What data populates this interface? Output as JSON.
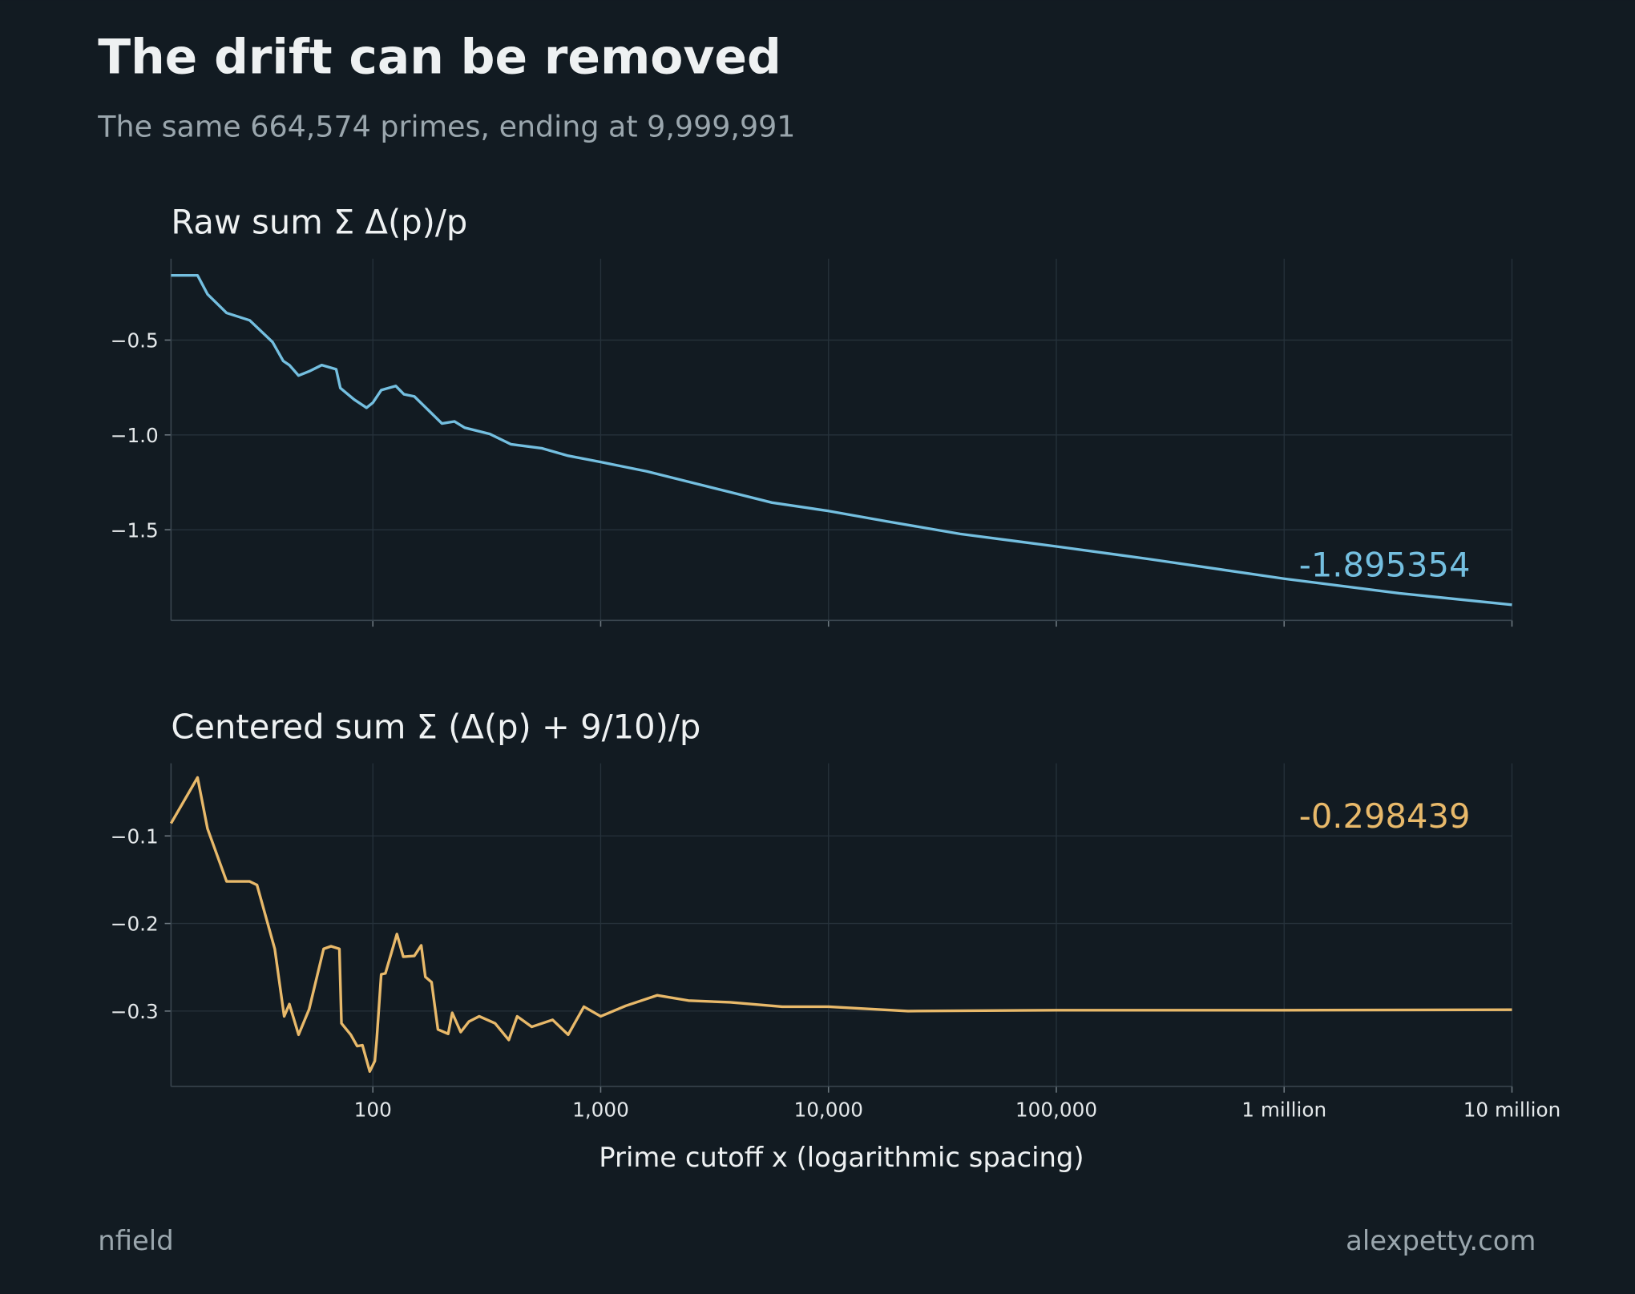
{
  "title": "The drift can be removed",
  "subtitle": "The same 664,574 primes, ending at 9,999,991",
  "footer_left": "nfield",
  "footer_right": "alexpetty.com",
  "chart_data": [
    {
      "type": "line",
      "title": "Raw sum   Σ Δ(p)/p",
      "log_x": true,
      "grid": true,
      "annotation": "-1.895354",
      "xlim": [
        13,
        9999991
      ],
      "ylim": [
        -1.978,
        -0.071
      ],
      "xticks": [
        100,
        1000,
        10000,
        100000,
        1000000,
        10000000
      ],
      "yticks": [
        {
          "value": -1.5,
          "label": "−1.5"
        },
        {
          "value": -1.0,
          "label": "−1.0"
        },
        {
          "value": -0.5,
          "label": "−0.5"
        }
      ],
      "series": [
        {
          "color": "#74bfe0",
          "x": [
            13,
            17,
            18.8,
            22.8,
            28.8,
            36.3,
            40.4,
            43,
            47.2,
            52.5,
            59.6,
            69,
            72,
            82.7,
            93.8,
            100,
            108.8,
            126,
            137,
            152,
            173,
            201,
            228,
            253,
            326,
            403,
            554,
            720,
            1000,
            1592,
            2427,
            3704,
            5650,
            10000,
            18070,
            37830,
            100000,
            253500,
            1000000,
            3199000,
            9999991
          ],
          "values": [
            -0.159,
            -0.159,
            -0.258,
            -0.357,
            -0.396,
            -0.511,
            -0.61,
            -0.632,
            -0.687,
            -0.665,
            -0.632,
            -0.654,
            -0.753,
            -0.813,
            -0.857,
            -0.83,
            -0.764,
            -0.742,
            -0.786,
            -0.797,
            -0.863,
            -0.94,
            -0.929,
            -0.962,
            -0.995,
            -1.049,
            -1.071,
            -1.11,
            -1.143,
            -1.192,
            -1.247,
            -1.302,
            -1.357,
            -1.401,
            -1.456,
            -1.522,
            -1.588,
            -1.654,
            -1.758,
            -1.835,
            -1.895354
          ]
        }
      ]
    },
    {
      "type": "line",
      "title": "Centered sum   Σ (Δ(p) + 9/10)/p",
      "log_x": true,
      "grid": true,
      "annotation": "-0.298439",
      "xlabel": "Prime cutoff  x  (logarithmic spacing)",
      "xlim": [
        13,
        9999991
      ],
      "ylim": [
        -0.386,
        -0.017
      ],
      "xticks": [
        100,
        {
          "value": 1000,
          "label": "1,000"
        },
        {
          "value": 10000,
          "label": "10,000"
        },
        {
          "value": 100000,
          "label": "100,000"
        },
        {
          "value": 1000000,
          "label": "1 million"
        },
        {
          "value": 10000000,
          "label": "10 million"
        }
      ],
      "yticks": [
        {
          "value": -0.3,
          "label": "−0.3"
        },
        {
          "value": -0.2,
          "label": "−0.2"
        },
        {
          "value": -0.1,
          "label": "−0.1"
        }
      ],
      "series": [
        {
          "color": "#e8b96a",
          "x": [
            13,
            17,
            18.8,
            22.8,
            28.8,
            31,
            37.1,
            40.8,
            43,
            47.2,
            52.5,
            60.8,
            65.5,
            71.3,
            72.8,
            80,
            85.3,
            90,
            96.9,
            102,
            104,
            108.8,
            113.5,
            127.5,
            136,
            152,
            163,
            170,
            181,
            193,
            214,
            223,
            243,
            264,
            293,
            344,
            395,
            430,
            498,
            615,
            720,
            844,
            1000,
            1289,
            1769,
            2427,
            3704,
            6268,
            10000,
            22340,
            100000,
            1000000,
            9999991
          ],
          "values": [
            -0.0857,
            -0.0333,
            -0.0917,
            -0.152,
            -0.152,
            -0.156,
            -0.229,
            -0.306,
            -0.292,
            -0.327,
            -0.298,
            -0.229,
            -0.226,
            -0.229,
            -0.314,
            -0.327,
            -0.34,
            -0.339,
            -0.369,
            -0.357,
            -0.332,
            -0.258,
            -0.257,
            -0.212,
            -0.238,
            -0.237,
            -0.225,
            -0.261,
            -0.267,
            -0.321,
            -0.326,
            -0.302,
            -0.324,
            -0.312,
            -0.306,
            -0.314,
            -0.333,
            -0.306,
            -0.318,
            -0.31,
            -0.327,
            -0.295,
            -0.306,
            -0.294,
            -0.282,
            -0.288,
            -0.29,
            -0.295,
            -0.295,
            -0.3,
            -0.299,
            -0.299,
            -0.298439
          ]
        }
      ]
    }
  ]
}
